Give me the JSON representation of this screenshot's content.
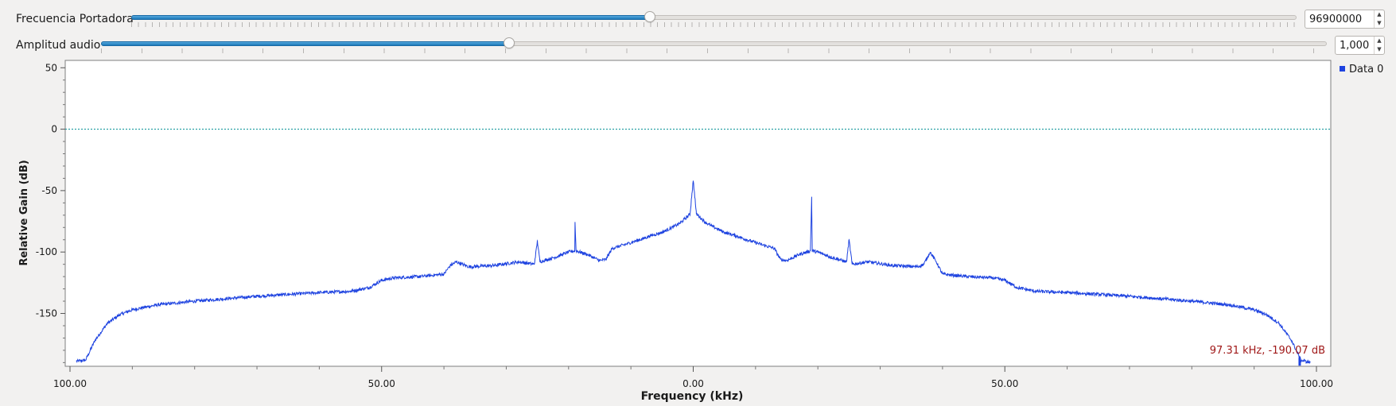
{
  "controls": {
    "carrier": {
      "label": "Frecuencia Portadora",
      "value": "96900000",
      "position_fraction": 0.445
    },
    "audio": {
      "label": "Amplitud audio",
      "value": "1,000",
      "position_fraction": 0.333
    },
    "spin_up_glyph": "▲",
    "spin_down_glyph": "▼"
  },
  "legend": {
    "label": "Data 0"
  },
  "cursor_readout": "97.31 kHz, -190.07 dB",
  "colors": {
    "series": "#1e43e0",
    "reference_line": "#1a9a9f",
    "readout": "#a01818",
    "slider_fill": "#2a8ad0"
  },
  "chart_data": {
    "type": "line",
    "title": "",
    "xlabel": "Frequency (kHz)",
    "ylabel": "Relative Gain (dB)",
    "xlim": [
      -100,
      100
    ],
    "ylim": [
      -193,
      56
    ],
    "x_ticks": [
      -100,
      -50,
      0,
      50,
      100
    ],
    "x_tick_labels": [
      "100.00",
      "50.00",
      "0.00",
      "50.00",
      "100.00"
    ],
    "y_ticks": [
      50,
      0,
      -50,
      -100,
      -150
    ],
    "y_tick_labels": [
      "50",
      "0",
      "-50",
      "-100",
      "-150"
    ],
    "reference_line_y": 0,
    "grid": false,
    "legend_position": "right",
    "series": [
      {
        "name": "Data 0",
        "points": [
          [
            -99,
            -189
          ],
          [
            -97.5,
            -188
          ],
          [
            -96,
            -172
          ],
          [
            -94,
            -158
          ],
          [
            -92,
            -151
          ],
          [
            -90,
            -147
          ],
          [
            -86,
            -143
          ],
          [
            -80,
            -140
          ],
          [
            -70,
            -136
          ],
          [
            -60,
            -133
          ],
          [
            -55,
            -132
          ],
          [
            -52,
            -129
          ],
          [
            -50,
            -123
          ],
          [
            -48,
            -121
          ],
          [
            -44,
            -120
          ],
          [
            -40,
            -118
          ],
          [
            -39,
            -111
          ],
          [
            -38,
            -108
          ],
          [
            -37,
            -110
          ],
          [
            -36,
            -112
          ],
          [
            -32,
            -111
          ],
          [
            -28,
            -108
          ],
          [
            -25.5,
            -110
          ],
          [
            -25,
            -91
          ],
          [
            -24.6,
            -108
          ],
          [
            -22,
            -104
          ],
          [
            -20,
            -100
          ],
          [
            -19,
            -99
          ],
          [
            -19.1,
            -56
          ],
          [
            -18.8,
            -99
          ],
          [
            -17,
            -102
          ],
          [
            -15,
            -107
          ],
          [
            -14,
            -106
          ],
          [
            -13,
            -97
          ],
          [
            -11,
            -94
          ],
          [
            -8,
            -89
          ],
          [
            -7,
            -87
          ],
          [
            -5,
            -84
          ],
          [
            -3,
            -79
          ],
          [
            -2,
            -76
          ],
          [
            -0.5,
            -69
          ],
          [
            -0.2,
            -52
          ],
          [
            0,
            -42
          ],
          [
            0.2,
            -52
          ],
          [
            0.5,
            -69
          ],
          [
            2,
            -76
          ],
          [
            3,
            -79
          ],
          [
            5,
            -84
          ],
          [
            7,
            -87
          ],
          [
            8,
            -89
          ],
          [
            11,
            -94
          ],
          [
            13,
            -97
          ],
          [
            14,
            -106
          ],
          [
            15,
            -107
          ],
          [
            17,
            -102
          ],
          [
            18.8,
            -99
          ],
          [
            19,
            -55
          ],
          [
            19.1,
            -99
          ],
          [
            20,
            -100
          ],
          [
            22,
            -104
          ],
          [
            24.6,
            -108
          ],
          [
            25,
            -90
          ],
          [
            25.5,
            -110
          ],
          [
            28,
            -108
          ],
          [
            32,
            -111
          ],
          [
            36,
            -112
          ],
          [
            37,
            -110
          ],
          [
            38,
            -100
          ],
          [
            39,
            -108
          ],
          [
            40,
            -118
          ],
          [
            44,
            -120
          ],
          [
            48,
            -121
          ],
          [
            50,
            -123
          ],
          [
            52,
            -129
          ],
          [
            55,
            -132
          ],
          [
            60,
            -133
          ],
          [
            70,
            -136
          ],
          [
            80,
            -140
          ],
          [
            86,
            -143
          ],
          [
            90,
            -147
          ],
          [
            92,
            -151
          ],
          [
            94,
            -158
          ],
          [
            96,
            -172
          ],
          [
            97.5,
            -188
          ],
          [
            99,
            -190
          ]
        ]
      }
    ]
  }
}
